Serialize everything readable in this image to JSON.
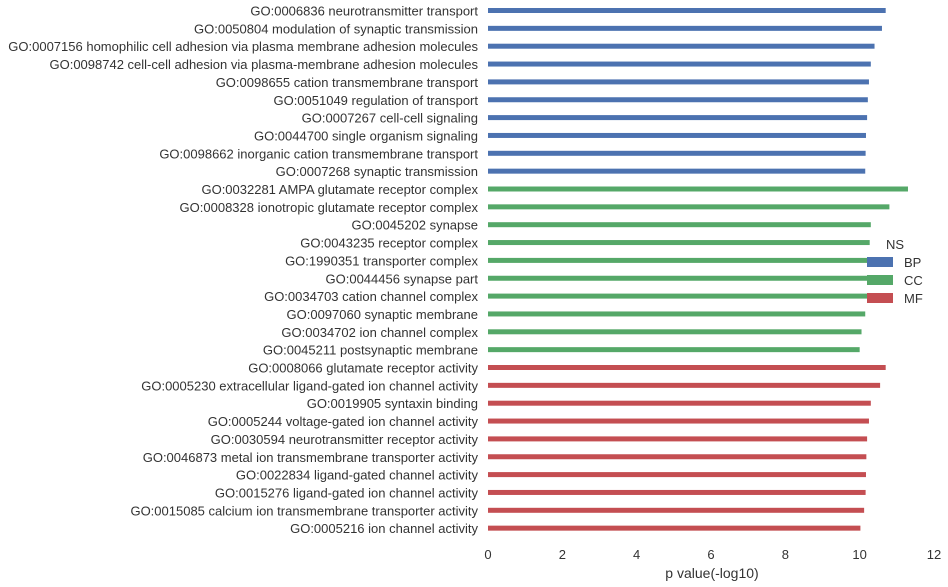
{
  "chart_data": {
    "type": "bar",
    "orientation": "horizontal",
    "xlabel": "p value(-log10)",
    "xlim": [
      0,
      12
    ],
    "xticks": [
      "0",
      "2",
      "4",
      "6",
      "8",
      "10",
      "12"
    ],
    "grid": false,
    "legend": {
      "title": "NS",
      "placement": "center-right",
      "entries": [
        {
          "label": "BP",
          "color": "#4c72b0"
        },
        {
          "label": "CC",
          "color": "#55a868"
        },
        {
          "label": "MF",
          "color": "#c44e52"
        }
      ]
    },
    "bars": [
      {
        "label": "GO:0006836 neurotransmitter transport",
        "value": 10.7,
        "group": "BP"
      },
      {
        "label": "GO:0050804 modulation of synaptic transmission",
        "value": 10.6,
        "group": "BP"
      },
      {
        "label": "GO:0007156 homophilic cell adhesion via plasma membrane adhesion molecules",
        "value": 10.4,
        "group": "BP"
      },
      {
        "label": "GO:0098742 cell-cell adhesion via plasma-membrane adhesion molecules",
        "value": 10.3,
        "group": "BP"
      },
      {
        "label": "GO:0098655 cation transmembrane transport",
        "value": 10.25,
        "group": "BP"
      },
      {
        "label": "GO:0051049 regulation of transport",
        "value": 10.22,
        "group": "BP"
      },
      {
        "label": "GO:0007267 cell-cell signaling",
        "value": 10.2,
        "group": "BP"
      },
      {
        "label": "GO:0044700 single organism signaling",
        "value": 10.17,
        "group": "BP"
      },
      {
        "label": "GO:0098662 inorganic cation transmembrane transport",
        "value": 10.16,
        "group": "BP"
      },
      {
        "label": "GO:0007268 synaptic transmission",
        "value": 10.15,
        "group": "BP"
      },
      {
        "label": "GO:0032281 AMPA glutamate receptor complex",
        "value": 11.3,
        "group": "CC"
      },
      {
        "label": "GO:0008328 ionotropic glutamate receptor complex",
        "value": 10.8,
        "group": "CC"
      },
      {
        "label": "GO:0045202 synapse",
        "value": 10.3,
        "group": "CC"
      },
      {
        "label": "GO:0043235 receptor complex",
        "value": 10.27,
        "group": "CC"
      },
      {
        "label": "GO:1990351 transporter complex",
        "value": 10.25,
        "group": "CC"
      },
      {
        "label": "GO:0044456 synapse part",
        "value": 10.23,
        "group": "CC"
      },
      {
        "label": "GO:0034703 cation channel complex",
        "value": 10.2,
        "group": "CC"
      },
      {
        "label": "GO:0097060 synaptic membrane",
        "value": 10.15,
        "group": "CC"
      },
      {
        "label": "GO:0034702 ion channel complex",
        "value": 10.05,
        "group": "CC"
      },
      {
        "label": "GO:0045211 postsynaptic membrane",
        "value": 10.0,
        "group": "CC"
      },
      {
        "label": "GO:0008066 glutamate receptor activity",
        "value": 10.7,
        "group": "MF"
      },
      {
        "label": "GO:0005230 extracellular ligand-gated ion channel activity",
        "value": 10.55,
        "group": "MF"
      },
      {
        "label": "GO:0019905 syntaxin binding",
        "value": 10.3,
        "group": "MF"
      },
      {
        "label": "GO:0005244 voltage-gated ion channel activity",
        "value": 10.25,
        "group": "MF"
      },
      {
        "label": "GO:0030594 neurotransmitter receptor activity",
        "value": 10.2,
        "group": "MF"
      },
      {
        "label": "GO:0046873 metal ion transmembrane transporter activity",
        "value": 10.18,
        "group": "MF"
      },
      {
        "label": "GO:0022834 ligand-gated channel activity",
        "value": 10.17,
        "group": "MF"
      },
      {
        "label": "GO:0015276 ligand-gated ion channel activity",
        "value": 10.16,
        "group": "MF"
      },
      {
        "label": "GO:0015085 calcium ion transmembrane transporter activity",
        "value": 10.12,
        "group": "MF"
      },
      {
        "label": "GO:0005216 ion channel activity",
        "value": 10.02,
        "group": "MF"
      }
    ]
  }
}
